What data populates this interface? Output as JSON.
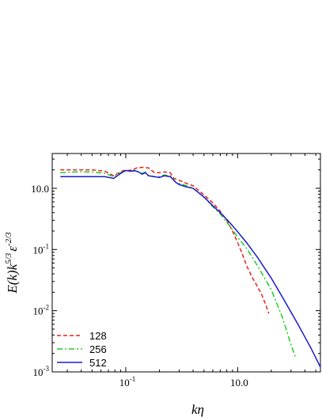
{
  "chart_data": {
    "type": "line",
    "xscale": "log",
    "yscale": "log",
    "xlim": [
      0.022,
      5.5
    ],
    "ylim": [
      0.001,
      3.7
    ],
    "xlabel": "kη",
    "ylabel": "E(k)k^5/3 ε^-2/3",
    "ylabel_parts": {
      "a": "E(k)k",
      "b": "5/3",
      "c": "ε",
      "d": "-2/3"
    },
    "xticks": [
      {
        "value": 0.1,
        "base": "10",
        "exp": "-1"
      },
      {
        "value": 1.0,
        "label": "10.0"
      }
    ],
    "yticks": [
      {
        "value": 0.001,
        "base": "10",
        "exp": "-3"
      },
      {
        "value": 0.01,
        "base": "10",
        "exp": "-2"
      },
      {
        "value": 0.1,
        "base": "10",
        "exp": "-1"
      },
      {
        "value": 1.0,
        "label": "10.0"
      }
    ],
    "legend_position": "bottom-left",
    "grid": false,
    "series": [
      {
        "name": "128",
        "color": "#e8211c",
        "dash": "5,3",
        "x": [
          0.026,
          0.035,
          0.05,
          0.065,
          0.078,
          0.085,
          0.095,
          0.105,
          0.115,
          0.125,
          0.14,
          0.16,
          0.18,
          0.2,
          0.22,
          0.25,
          0.27,
          0.3,
          0.35,
          0.4,
          0.5,
          0.6,
          0.7,
          0.8,
          0.9,
          1.0,
          1.1,
          1.2,
          1.35,
          1.5,
          1.65,
          1.8,
          1.9
        ],
        "y": [
          2.0,
          2.0,
          2.0,
          1.9,
          1.6,
          1.75,
          1.95,
          1.95,
          2.0,
          2.15,
          2.2,
          2.15,
          1.8,
          1.8,
          1.85,
          1.8,
          1.45,
          1.35,
          1.2,
          1.1,
          0.78,
          0.58,
          0.42,
          0.3,
          0.2,
          0.13,
          0.085,
          0.055,
          0.035,
          0.025,
          0.018,
          0.012,
          0.009
        ]
      },
      {
        "name": "256",
        "color": "#22cc22",
        "dash": "7,3,2,3",
        "x": [
          0.026,
          0.035,
          0.05,
          0.065,
          0.078,
          0.09,
          0.1,
          0.11,
          0.12,
          0.13,
          0.14,
          0.15,
          0.16,
          0.18,
          0.2,
          0.22,
          0.25,
          0.28,
          0.3,
          0.35,
          0.4,
          0.5,
          0.6,
          0.7,
          0.8,
          0.9,
          1.0,
          1.2,
          1.5,
          2.0,
          2.5,
          3.0,
          3.3
        ],
        "y": [
          1.8,
          1.85,
          1.85,
          1.75,
          1.55,
          1.8,
          1.95,
          1.9,
          1.9,
          1.85,
          1.75,
          1.85,
          1.6,
          1.55,
          1.55,
          1.65,
          1.6,
          1.25,
          1.2,
          1.1,
          1.0,
          0.72,
          0.5,
          0.38,
          0.28,
          0.21,
          0.16,
          0.105,
          0.055,
          0.022,
          0.008,
          0.0028,
          0.0017
        ]
      },
      {
        "name": "512",
        "color": "#1a1acc",
        "dash": "",
        "x": [
          0.026,
          0.035,
          0.05,
          0.065,
          0.078,
          0.09,
          0.1,
          0.11,
          0.12,
          0.13,
          0.14,
          0.15,
          0.16,
          0.18,
          0.2,
          0.22,
          0.25,
          0.28,
          0.3,
          0.35,
          0.4,
          0.5,
          0.6,
          0.7,
          0.8,
          0.9,
          1.0,
          1.2,
          1.5,
          2.0,
          2.5,
          3.0,
          3.5,
          4.0,
          4.5,
          5.0,
          5.5
        ],
        "y": [
          1.55,
          1.55,
          1.55,
          1.55,
          1.45,
          1.75,
          1.95,
          1.9,
          1.95,
          1.85,
          1.7,
          1.8,
          1.6,
          1.55,
          1.5,
          1.6,
          1.55,
          1.25,
          1.15,
          1.05,
          1.0,
          0.72,
          0.52,
          0.4,
          0.31,
          0.245,
          0.195,
          0.13,
          0.075,
          0.034,
          0.017,
          0.0095,
          0.0058,
          0.0037,
          0.0025,
          0.0017,
          0.0012
        ]
      }
    ]
  }
}
